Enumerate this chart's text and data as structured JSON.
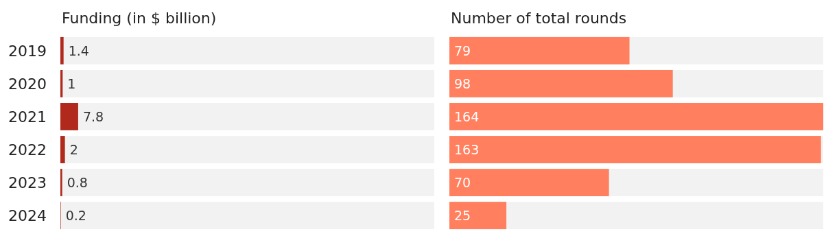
{
  "chart_data": [
    {
      "type": "bar",
      "orientation": "horizontal",
      "title": "Funding (in $ billion)",
      "categories": [
        "2019",
        "2020",
        "2021",
        "2022",
        "2023",
        "2024"
      ],
      "values": [
        1.4,
        1,
        7.8,
        2,
        0.8,
        0.2
      ],
      "color": "#b0291c",
      "xlim": [
        0,
        164
      ],
      "data_labels": true,
      "tick_labels": "y"
    },
    {
      "type": "bar",
      "orientation": "horizontal",
      "title": "Number of total rounds",
      "categories": [
        "2019",
        "2020",
        "2021",
        "2022",
        "2023",
        "2024"
      ],
      "values": [
        79,
        98,
        164,
        163,
        70,
        25
      ],
      "color": "#ff7f5e",
      "xlim": [
        0,
        164
      ],
      "data_labels": true,
      "tick_labels": false
    }
  ]
}
